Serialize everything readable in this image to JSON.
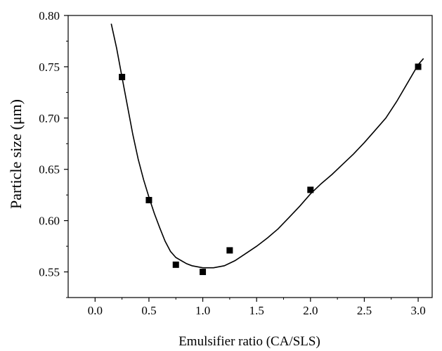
{
  "chart_data": {
    "type": "scatter",
    "xlabel": "Emulsifier ratio (CA/SLS)",
    "ylabel": "Particle size (μm)",
    "xlim": [
      -0.25,
      3.13
    ],
    "ylim": [
      0.525,
      0.8
    ],
    "x_ticks": [
      "0.0",
      "0.5",
      "1.0",
      "1.5",
      "2.0",
      "2.5",
      "3.0"
    ],
    "y_ticks": [
      "0.55",
      "0.60",
      "0.65",
      "0.70",
      "0.75",
      "0.80"
    ],
    "grid": false,
    "legend": "none",
    "series": [
      {
        "marker": "square",
        "color": "#000000",
        "points": [
          {
            "x": 0.25,
            "y": 0.74
          },
          {
            "x": 0.5,
            "y": 0.62
          },
          {
            "x": 0.75,
            "y": 0.557
          },
          {
            "x": 1.0,
            "y": 0.55
          },
          {
            "x": 1.25,
            "y": 0.571
          },
          {
            "x": 2.0,
            "y": 0.63
          },
          {
            "x": 3.0,
            "y": 0.75
          }
        ]
      },
      {
        "type": "line",
        "color": "#000000",
        "points": [
          {
            "x": 0.15,
            "y": 0.792
          },
          {
            "x": 0.2,
            "y": 0.768
          },
          {
            "x": 0.25,
            "y": 0.74
          },
          {
            "x": 0.3,
            "y": 0.712
          },
          {
            "x": 0.35,
            "y": 0.684
          },
          {
            "x": 0.4,
            "y": 0.66
          },
          {
            "x": 0.45,
            "y": 0.64
          },
          {
            "x": 0.5,
            "y": 0.623
          },
          {
            "x": 0.55,
            "y": 0.607
          },
          {
            "x": 0.6,
            "y": 0.593
          },
          {
            "x": 0.65,
            "y": 0.58
          },
          {
            "x": 0.7,
            "y": 0.57
          },
          {
            "x": 0.75,
            "y": 0.564
          },
          {
            "x": 0.8,
            "y": 0.561
          },
          {
            "x": 0.85,
            "y": 0.558
          },
          {
            "x": 0.9,
            "y": 0.556
          },
          {
            "x": 1.0,
            "y": 0.554
          },
          {
            "x": 1.1,
            "y": 0.554
          },
          {
            "x": 1.2,
            "y": 0.556
          },
          {
            "x": 1.3,
            "y": 0.561
          },
          {
            "x": 1.4,
            "y": 0.568
          },
          {
            "x": 1.5,
            "y": 0.575
          },
          {
            "x": 1.6,
            "y": 0.583
          },
          {
            "x": 1.7,
            "y": 0.592
          },
          {
            "x": 1.8,
            "y": 0.603
          },
          {
            "x": 1.9,
            "y": 0.614
          },
          {
            "x": 2.0,
            "y": 0.626
          },
          {
            "x": 2.1,
            "y": 0.636
          },
          {
            "x": 2.2,
            "y": 0.645
          },
          {
            "x": 2.3,
            "y": 0.655
          },
          {
            "x": 2.4,
            "y": 0.665
          },
          {
            "x": 2.5,
            "y": 0.676
          },
          {
            "x": 2.6,
            "y": 0.688
          },
          {
            "x": 2.7,
            "y": 0.7
          },
          {
            "x": 2.8,
            "y": 0.716
          },
          {
            "x": 2.9,
            "y": 0.734
          },
          {
            "x": 3.0,
            "y": 0.752
          },
          {
            "x": 3.05,
            "y": 0.758
          }
        ]
      }
    ]
  }
}
